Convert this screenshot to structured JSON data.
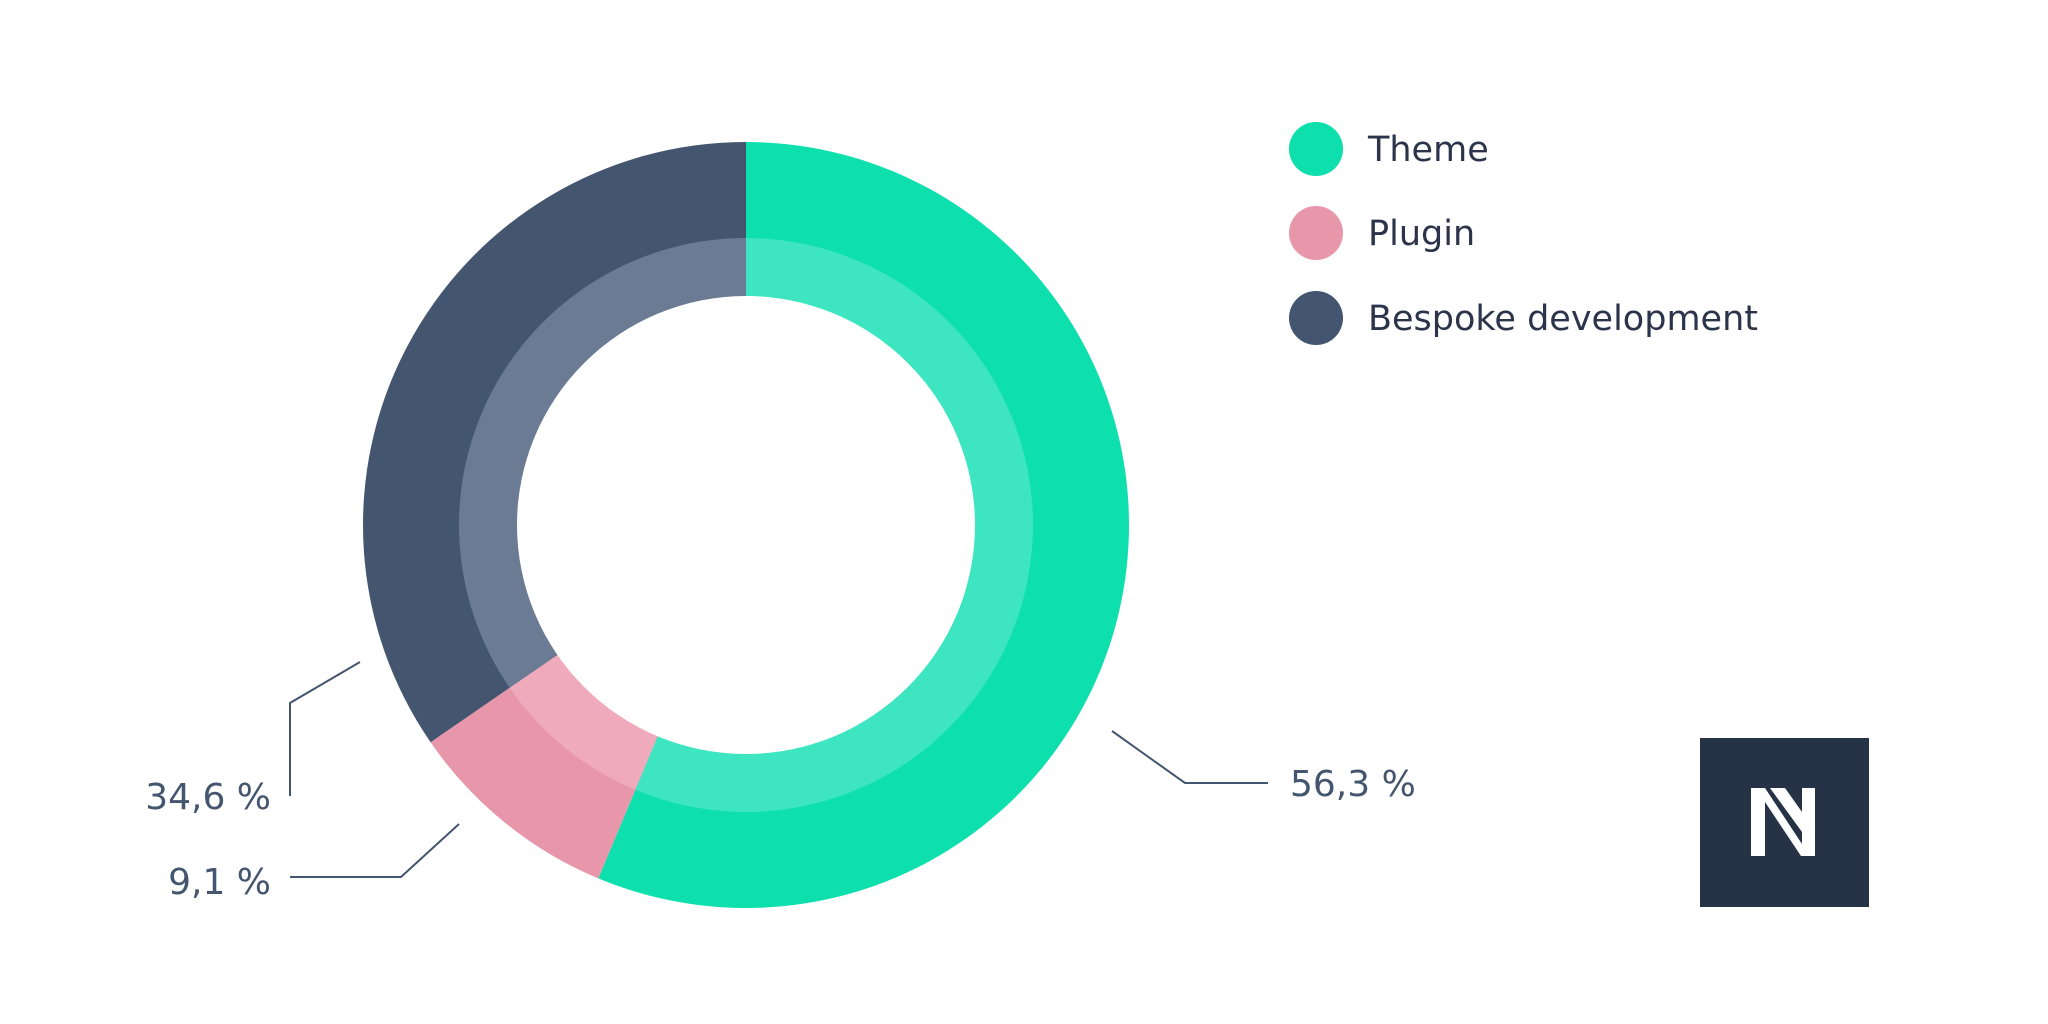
{
  "chart_data": {
    "type": "pie",
    "style": "donut",
    "start_angle_deg": 0,
    "direction": "clockwise",
    "categories": [
      "Theme",
      "Plugin",
      "Bespoke development"
    ],
    "values": [
      56.3,
      9.1,
      34.6
    ],
    "value_labels": [
      "56,3 %",
      "9,1 %",
      "34,6 %"
    ],
    "colors": [
      "#0ddfad",
      "#e897ab",
      "#44566f"
    ],
    "inner_colors": [
      "#3de5c0",
      "#efaabb",
      "#6a7b93"
    ],
    "legend_placement": "top-right",
    "title": ""
  },
  "logo": {
    "name": "brand-logo-icon",
    "background": "#263245",
    "foreground": "#ffffff"
  }
}
